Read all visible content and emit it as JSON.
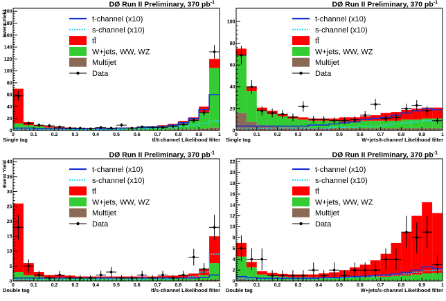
{
  "figure": {
    "title": "DØ Run II Preliminary, 370 pb",
    "title_sup": "-1",
    "ylabel": "Event Yield"
  },
  "colors": {
    "tchannel": "#1830d8",
    "schannel": "#2ad8f0",
    "ttbar": "#ff0000",
    "wjets": "#33cc33",
    "multijet": "#8b6a55",
    "data": "#000000"
  },
  "legend": {
    "tchannel": "t-channel (x10)",
    "schannel": "s-channel (x10)",
    "ttbar": "tt̄",
    "wjets": "W+jets, WW, WZ",
    "multijet": "Multijet",
    "data": "Data"
  },
  "chart_data": [
    {
      "type": "histogram",
      "title": "DØ Run II Preliminary, 370 pb-1",
      "tag": "Single tag",
      "xlabel": "tt̄/t-channel Likelihood filter",
      "ylabel": "Event Yield",
      "xlim": [
        0,
        1
      ],
      "ylim": [
        0,
        205
      ],
      "xticks": [
        0,
        0.1,
        0.2,
        0.3,
        0.4,
        0.5,
        0.6,
        0.7,
        0.8,
        0.9,
        1
      ],
      "xticklabels": [
        "0",
        "0.1",
        "0.2",
        "0.3",
        "0.4",
        "0.5",
        "0.6",
        "0.7",
        "0.8",
        "0.9",
        "1"
      ],
      "yticks": [
        0,
        20,
        40,
        60,
        80,
        100,
        120,
        140,
        160,
        180,
        200
      ],
      "bins": 20,
      "stack": {
        "multijet": [
          5,
          3,
          2,
          1,
          1,
          1,
          1,
          1,
          1,
          1,
          1,
          1,
          1,
          1,
          1,
          2,
          2,
          2,
          3,
          5
        ],
        "wjets": [
          12,
          9,
          7,
          5,
          4,
          3,
          3,
          3,
          3,
          3,
          4,
          4,
          4,
          5,
          6,
          8,
          12,
          18,
          30,
          105
        ],
        "ttbar": [
          70,
          14,
          9,
          7,
          6,
          5,
          4,
          4,
          4,
          4,
          5,
          5,
          6,
          7,
          9,
          11,
          16,
          22,
          40,
          120
        ]
      },
      "tchannel": [
        4,
        4,
        3,
        3,
        3,
        3,
        3,
        3,
        3,
        3,
        4,
        4,
        5,
        6,
        7,
        9,
        13,
        20,
        35,
        60
      ],
      "schannel": [
        2,
        2,
        2,
        2,
        2,
        2,
        2,
        2,
        2,
        2,
        2,
        3,
        3,
        3,
        4,
        5,
        7,
        9,
        12,
        16
      ],
      "data": {
        "x": [
          0.025,
          0.075,
          0.125,
          0.175,
          0.225,
          0.275,
          0.325,
          0.375,
          0.425,
          0.475,
          0.525,
          0.575,
          0.625,
          0.675,
          0.725,
          0.775,
          0.825,
          0.875,
          0.925,
          0.975
        ],
        "y": [
          58,
          12,
          9,
          8,
          6,
          4,
          4,
          3,
          5,
          4,
          9,
          4,
          6,
          5,
          5,
          7,
          10,
          17,
          30,
          132
        ],
        "err": [
          8,
          3.5,
          3,
          3,
          2.5,
          2,
          2,
          1.8,
          2.2,
          2,
          3,
          2,
          2.5,
          2.2,
          2.2,
          2.6,
          3.2,
          4,
          5.5,
          11.5
        ]
      }
    },
    {
      "type": "histogram",
      "title": "DØ Run II Preliminary, 370 pb-1",
      "tag": "Single tag",
      "xlabel": "W+jets/t-channel Likelihood filter",
      "ylabel": "",
      "xlim": [
        0,
        1
      ],
      "ylim": [
        0,
        112
      ],
      "xticks": [
        0,
        0.1,
        0.2,
        0.3,
        0.4,
        0.5,
        0.6,
        0.7,
        0.8,
        0.9,
        1
      ],
      "xticklabels": [
        "0",
        "0.1",
        "0.2",
        "0.3",
        "0.4",
        "0.5",
        "0.6",
        "0.7",
        "0.8",
        "0.9",
        "1"
      ],
      "yticks": [
        0,
        20,
        40,
        60,
        80,
        100
      ],
      "bins": 20,
      "stack": {
        "multijet": [
          16,
          8,
          5,
          4,
          3,
          3,
          3,
          2,
          2,
          2,
          2,
          2,
          2,
          2,
          2,
          2,
          2,
          2,
          2,
          2
        ],
        "wjets": [
          69,
          36,
          18,
          15,
          13,
          11,
          10,
          9,
          9,
          9,
          8,
          8,
          9,
          9,
          9,
          9,
          10,
          10,
          11,
          11
        ],
        "ttbar": [
          75,
          40,
          21,
          18,
          15,
          13,
          12,
          11,
          11,
          11,
          12,
          12,
          13,
          14,
          16,
          17,
          19,
          20,
          21,
          21
        ]
      },
      "tchannel": [
        4,
        4,
        4,
        4,
        4,
        4,
        4,
        5,
        5,
        6,
        7,
        8,
        10,
        11,
        12,
        14,
        16,
        18,
        20,
        19
      ],
      "schannel": [
        2,
        2,
        2,
        2,
        2,
        2,
        2,
        2,
        2,
        3,
        3,
        3,
        4,
        4,
        5,
        6,
        7,
        8,
        9,
        9
      ],
      "data": {
        "x": [
          0.025,
          0.075,
          0.125,
          0.175,
          0.225,
          0.275,
          0.325,
          0.375,
          0.425,
          0.475,
          0.525,
          0.575,
          0.625,
          0.675,
          0.725,
          0.775,
          0.825,
          0.875,
          0.925,
          0.975
        ],
        "y": [
          69,
          40,
          18,
          16,
          15,
          12,
          22,
          10,
          10,
          9,
          9,
          10,
          14,
          24,
          11,
          12,
          20,
          23,
          18,
          9
        ],
        "err": [
          8.5,
          6.3,
          4.2,
          4,
          3.9,
          3.5,
          4.7,
          3.2,
          3.2,
          3,
          3,
          3.2,
          3.7,
          4.9,
          3.3,
          3.5,
          4.5,
          4.8,
          4.2,
          3
        ]
      }
    },
    {
      "type": "histogram",
      "title": "DØ Run II Preliminary, 370 pb-1",
      "tag": "Double tag",
      "xlabel": "tt̄/s-channel Likelihood filter",
      "ylabel": "Event Yield",
      "xlim": [
        0,
        1
      ],
      "ylim": [
        0,
        41
      ],
      "xticks": [
        0,
        0.1,
        0.2,
        0.3,
        0.4,
        0.5,
        0.6,
        0.7,
        0.8,
        0.9,
        1
      ],
      "xticklabels": [
        "0",
        "0.1",
        "0.2",
        "0.3",
        "0.4",
        "0.5",
        "0.6",
        "0.7",
        "0.8",
        "0.9",
        "1"
      ],
      "yticks": [
        0,
        5,
        10,
        15,
        20,
        25,
        30,
        35,
        40
      ],
      "bins": 20,
      "stack": {
        "multijet": [
          0.5,
          0.3,
          0.2,
          0.1,
          0.1,
          0.1,
          0.1,
          0.1,
          0.1,
          0.1,
          0.1,
          0.1,
          0.1,
          0.1,
          0.1,
          0.1,
          0.1,
          0.2,
          0.3,
          0.5
        ],
        "wjets": [
          3,
          2,
          1.5,
          1,
          1,
          1,
          0.8,
          0.8,
          0.8,
          0.8,
          0.8,
          0.8,
          0.8,
          0.8,
          0.8,
          1,
          1,
          1.2,
          2,
          6
        ],
        "ttbar": [
          26,
          6,
          3,
          2,
          2,
          1.8,
          1.5,
          1.5,
          1.5,
          1.5,
          1.5,
          1.5,
          1.5,
          1.5,
          1.6,
          1.8,
          2,
          2.5,
          4,
          15
        ]
      },
      "tchannel": [
        1,
        1,
        1,
        1,
        1,
        1,
        1,
        1,
        1,
        1,
        1,
        1,
        1,
        1,
        1,
        1,
        1,
        1,
        1.2,
        2
      ],
      "schannel": [
        0.5,
        0.5,
        0.5,
        0.5,
        0.5,
        0.5,
        0.5,
        0.5,
        0.5,
        0.5,
        0.5,
        0.5,
        0.5,
        0.5,
        0.6,
        0.7,
        1,
        1.5,
        3,
        9
      ],
      "data": {
        "x": [
          0.025,
          0.075,
          0.125,
          0.175,
          0.225,
          0.275,
          0.325,
          0.375,
          0.425,
          0.475,
          0.525,
          0.575,
          0.625,
          0.675,
          0.725,
          0.775,
          0.825,
          0.875,
          0.925,
          0.975
        ],
        "y": [
          18,
          5,
          2,
          1,
          2,
          1,
          1,
          1,
          2,
          3,
          1,
          1,
          2,
          1,
          2,
          1,
          2,
          8,
          4,
          18
        ],
        "err": [
          4.2,
          2.2,
          1.4,
          1,
          1.4,
          1,
          1,
          1,
          1.4,
          1.7,
          1,
          1,
          1.4,
          1,
          1.4,
          1,
          1.4,
          2.8,
          2,
          4.2
        ]
      }
    },
    {
      "type": "histogram",
      "title": "DØ Run II Preliminary, 370 pb-1",
      "tag": "Double tag",
      "xlabel": "W+jets/s-channel Likelihood filter",
      "ylabel": "",
      "xlim": [
        0,
        1
      ],
      "ylim": [
        0,
        22.5
      ],
      "xticks": [
        0,
        0.1,
        0.2,
        0.3,
        0.4,
        0.5,
        0.6,
        0.7,
        0.8,
        0.9,
        1
      ],
      "xticklabels": [
        "0",
        "0.1",
        "0.2",
        "0.3",
        "0.4",
        "0.5",
        "0.6",
        "0.7",
        "0.8",
        "0.9",
        "1"
      ],
      "yticks": [
        0,
        2,
        4,
        6,
        8,
        10,
        12,
        14,
        16,
        18,
        20,
        22
      ],
      "bins": 20,
      "stack": {
        "multijet": [
          0.5,
          0.2,
          0.1,
          0.1,
          0.1,
          0.1,
          0.1,
          0.1,
          0.1,
          0.1,
          0.1,
          0.1,
          0.1,
          0.1,
          0.1,
          0.1,
          0.1,
          0.1,
          0.1,
          0.1
        ],
        "wjets": [
          4.5,
          2.5,
          1.2,
          0.9,
          0.8,
          0.7,
          0.7,
          0.7,
          0.7,
          0.7,
          0.7,
          0.7,
          0.7,
          0.8,
          0.8,
          0.9,
          1,
          1.2,
          1.4,
          1.5
        ],
        "ttbar": [
          7,
          3.5,
          1.8,
          1.5,
          1.3,
          1.2,
          1.2,
          1.2,
          1.4,
          1.6,
          2,
          2.5,
          3,
          3.8,
          5,
          7,
          9,
          12,
          14.5,
          12.5
        ]
      },
      "tchannel": [
        0.8,
        0.6,
        0.5,
        0.5,
        0.5,
        0.5,
        0.5,
        0.5,
        0.6,
        0.6,
        0.7,
        0.8,
        0.9,
        1,
        1.1,
        1.3,
        1.6,
        2,
        2.6,
        2.3
      ],
      "schannel": [
        0.4,
        0.4,
        0.4,
        0.4,
        0.4,
        0.4,
        0.4,
        0.4,
        0.5,
        0.5,
        0.6,
        0.7,
        0.8,
        0.9,
        1,
        1.1,
        1.3,
        1.6,
        1.9,
        2
      ],
      "data": {
        "x": [
          0.025,
          0.075,
          0.125,
          0.175,
          0.225,
          0.275,
          0.325,
          0.375,
          0.425,
          0.475,
          0.525,
          0.575,
          0.625,
          0.675,
          0.725,
          0.775,
          0.825,
          0.875,
          0.925,
          0.975
        ],
        "y": [
          6,
          4,
          4,
          1,
          1,
          1,
          1,
          2,
          1,
          2,
          1,
          2,
          2,
          2,
          4,
          4,
          9,
          8,
          9,
          3
        ],
        "err": [
          2.4,
          2,
          2,
          1,
          1,
          1,
          1,
          1.4,
          1,
          1.4,
          1,
          1.4,
          1.4,
          1.4,
          2,
          2,
          3,
          2.8,
          3,
          1.7
        ]
      }
    }
  ]
}
